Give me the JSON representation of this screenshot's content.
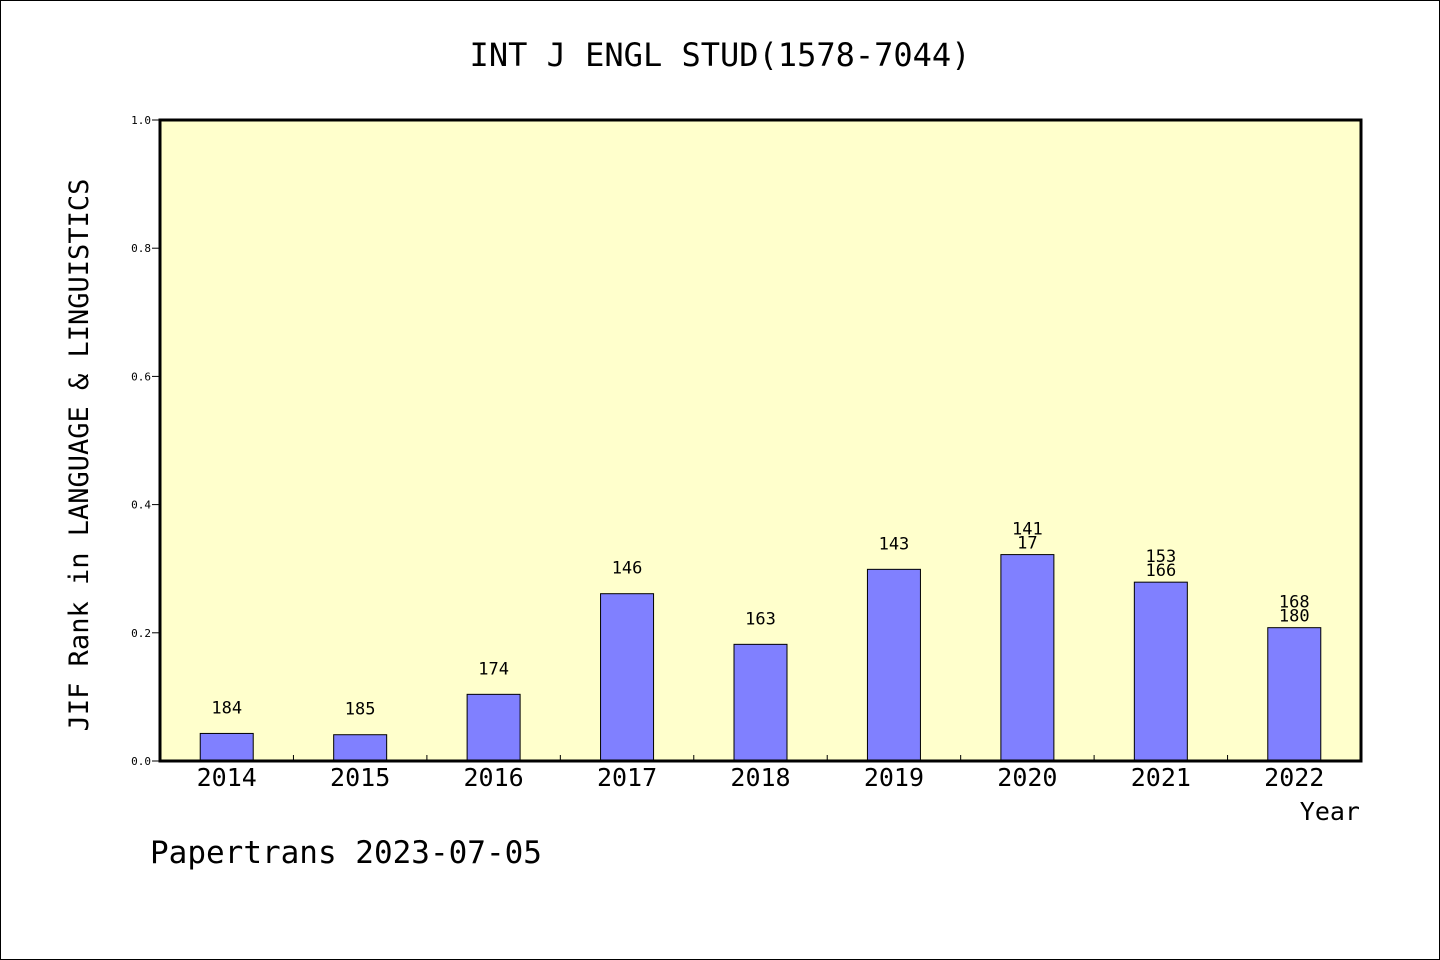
{
  "chart_data": {
    "type": "bar",
    "title": "INT J ENGL STUD(1578-7044)",
    "xlabel": "Year",
    "ylabel": "JIF Rank in LANGUAGE & LINGUISTICS",
    "footer": "Papertrans 2023-07-05",
    "categories": [
      "2014",
      "2015",
      "2016",
      "2017",
      "2018",
      "2019",
      "2020",
      "2021",
      "2022"
    ],
    "values": [
      0.043,
      0.041,
      0.104,
      0.261,
      0.182,
      0.299,
      0.322,
      0.279,
      0.208
    ],
    "bar_labels": [
      [
        "184"
      ],
      [
        "185"
      ],
      [
        "174"
      ],
      [
        "146"
      ],
      [
        "163"
      ],
      [
        "143"
      ],
      [
        "141",
        "17"
      ],
      [
        "153",
        "166"
      ],
      [
        "168",
        "180"
      ]
    ],
    "ylim": [
      0,
      1.0
    ],
    "yticks": [
      "0.0",
      "0.2",
      "0.4",
      "0.6",
      "0.8",
      "1.0"
    ],
    "grid": false,
    "colors": {
      "plot_background": "#ffffcc",
      "bar_fill": "#8080ff",
      "bar_stroke": "#000000"
    }
  }
}
